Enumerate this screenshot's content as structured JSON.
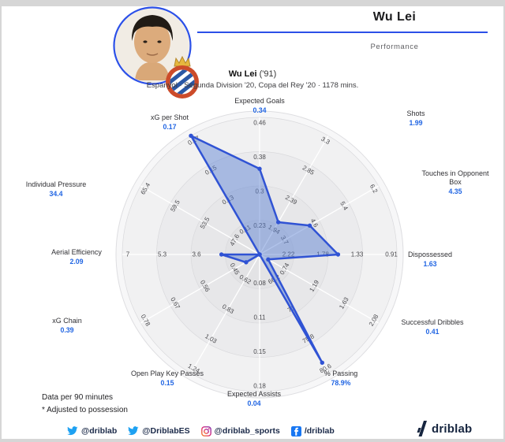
{
  "header": {
    "title": "Wu Lei",
    "subtitle": "Performance"
  },
  "chart_header": {
    "name": "Wu Lei",
    "birth": "('91)",
    "meta": "Espanyol · Segunda Division '20, Copa del Rey '20 · 1178 mins."
  },
  "chart_data": {
    "type": "radar",
    "rings": 4,
    "axes": [
      {
        "label": [
          "Expected Goals"
        ],
        "value": "0.34",
        "ticks": [
          "0.23",
          "0.3",
          "0.38",
          "0.46"
        ]
      },
      {
        "label": [
          "Shots"
        ],
        "value": "1.99",
        "ticks": [
          "1.94",
          "2.39",
          "2.85",
          "3.3"
        ]
      },
      {
        "label": [
          "Touches in Opponent",
          "Box"
        ],
        "value": "4.35",
        "ticks": [
          "3.7",
          "4.6",
          "5.4",
          "6.2"
        ]
      },
      {
        "label": [
          "Dispossessed"
        ],
        "value": "1.63",
        "ticks": [
          "2.22",
          "1.78",
          "1.33",
          "0.91"
        ]
      },
      {
        "label": [
          "Successful Dribbles"
        ],
        "value": "0.41",
        "ticks": [
          "0.74",
          "1.19",
          "1.63",
          "2.08"
        ]
      },
      {
        "label": [
          "% Passing"
        ],
        "value": "78.9%",
        "ticks": [
          "66.2",
          "71",
          "75.8",
          "80.6"
        ]
      },
      {
        "label": [
          "Expected Assists"
        ],
        "value": "0.04",
        "ticks": [
          "0.08",
          "0.11",
          "0.15",
          "0.18"
        ]
      },
      {
        "label": [
          "Open Play Key Passes"
        ],
        "value": "0.15",
        "ticks": [
          "0.62",
          "0.83",
          "1.03",
          "1.24"
        ]
      },
      {
        "label": [
          "xG Chain"
        ],
        "value": "0.39",
        "ticks": [
          "0.45",
          "0.56",
          "0.67",
          "0.78"
        ]
      },
      {
        "label": [
          "Aerial Efficiency"
        ],
        "value": "2.09",
        "ticks": [
          null,
          "3.6",
          "5.3",
          "7"
        ]
      },
      {
        "label": [
          "Individual Pressure"
        ],
        "value": "34.4",
        "ticks": [
          "47.6",
          "53.5",
          "59.5",
          "65.4"
        ]
      },
      {
        "label": [
          "xG per Shot"
        ],
        "value": "0.17",
        "ticks": [
          "0.11",
          "0.13",
          "0.15",
          "0.17"
        ]
      }
    ]
  },
  "notes": {
    "line1": "Data per 90 minutes",
    "line2": "* Adjusted to possession"
  },
  "footer": {
    "socials": [
      {
        "icon": "twitter-icon",
        "handle": "@driblab"
      },
      {
        "icon": "twitter-icon",
        "handle": "@DriblabES"
      },
      {
        "icon": "instagram-icon",
        "handle": "@driblab_sports"
      },
      {
        "icon": "facebook-icon",
        "handle": "/driblab"
      }
    ],
    "brand": "driblab"
  },
  "colors": {
    "accent": "#2b50e8",
    "value_blue": "#2266e3",
    "polygon_stroke": "#3053d4",
    "polygon_fill": "rgba(93,130,212,0.48)",
    "navy": "#16253f",
    "twitter_blue": "#1da1f2",
    "facebook_blue": "#1877f2"
  }
}
